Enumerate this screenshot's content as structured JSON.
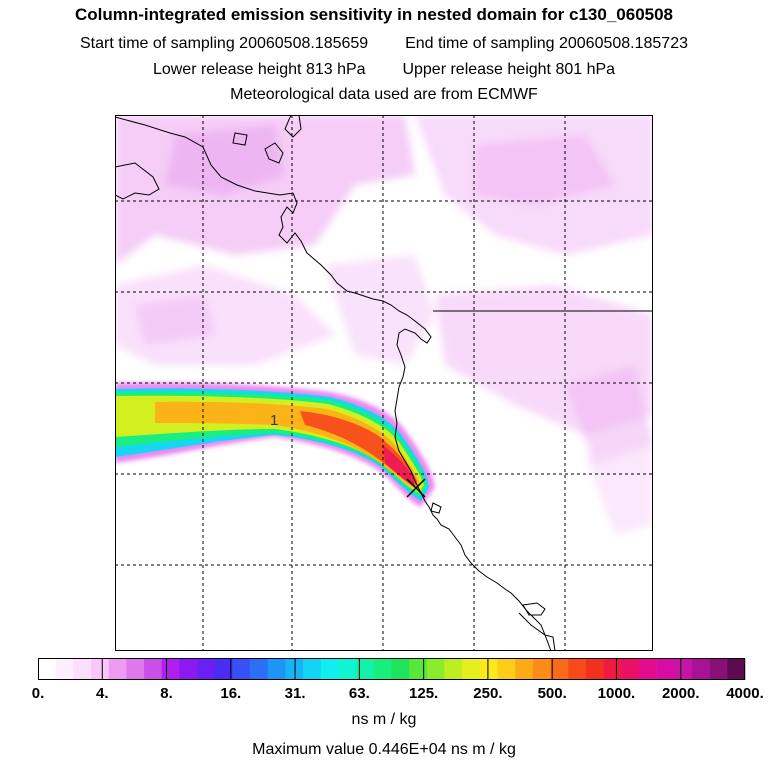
{
  "title": "Column-integrated emission sensitivity in nested domain for c130_060508",
  "start_label": "Start time of sampling",
  "start_value": "20060508.185659",
  "end_label": "End time of sampling",
  "end_value": "20060508.185723",
  "lower_label": "Lower release height",
  "lower_value": "813 hPa",
  "upper_label": "Upper release height",
  "upper_value": "801 hPa",
  "met_line": "Meteorological data used are from ECMWF",
  "plume_label": "1",
  "colorbar": {
    "tick_labels": [
      "0.",
      "4.",
      "8.",
      "16.",
      "31.",
      "63.",
      "125.",
      "250.",
      "500.",
      "1000.",
      "2000.",
      "4000."
    ],
    "colors": [
      "#ffffff",
      "#ffeefe",
      "#fcddfc",
      "#f8c6f9",
      "#ed9cf1",
      "#df78ec",
      "#cc4ee8",
      "#b01ff0",
      "#8c19f2",
      "#6a1ff4",
      "#4a2cf5",
      "#3850f7",
      "#2a70f5",
      "#1d95f6",
      "#17b5f5",
      "#13d4f2",
      "#10eef0",
      "#10f4d2",
      "#12f2a9",
      "#16ee7e",
      "#1fe35a",
      "#56e83b",
      "#8bec2b",
      "#bdee22",
      "#e4ef1d",
      "#fbe91b",
      "#fccd19",
      "#fcab17",
      "#fc8c17",
      "#f96a1a",
      "#f7491c",
      "#f3301e",
      "#f0193f",
      "#ec0f68",
      "#e50b8e",
      "#d80ca5",
      "#c514a6",
      "#aa1296",
      "#8a1079",
      "#5e0a50"
    ]
  },
  "unit": "ns m / kg",
  "max_label": "Maximum value",
  "max_value": "0.446E+04 ns m / kg"
}
